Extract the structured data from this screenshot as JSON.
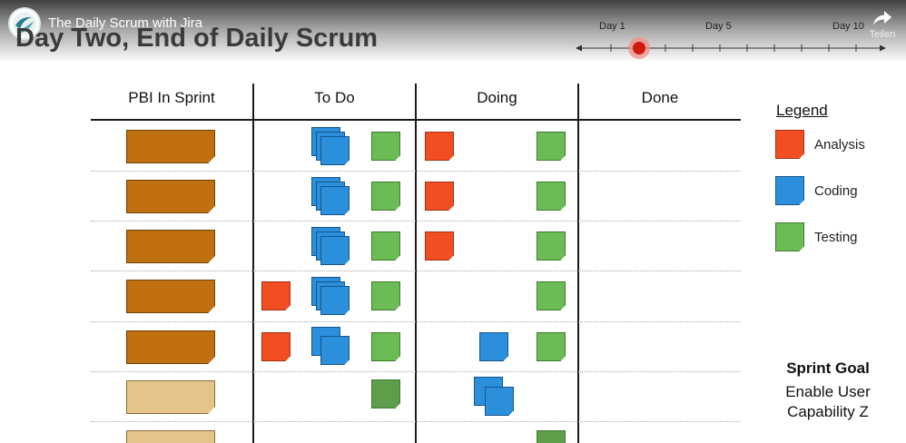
{
  "video": {
    "title": "The Daily Scrum with Jira",
    "share_label": "Teilen",
    "logo_icon": "channel-logo-icon"
  },
  "slide": {
    "title": "Day Two, End of Daily Scrum"
  },
  "timeline": {
    "labels": [
      "Day 1",
      "Day 5",
      "Day 10"
    ],
    "current_marker": "red-dot-day-2"
  },
  "board": {
    "columns": [
      "PBI In Sprint",
      "To Do",
      "Doing",
      "Done"
    ]
  },
  "legend": {
    "title": "Legend",
    "items": [
      {
        "label": "Analysis",
        "color": "#f24e23"
      },
      {
        "label": "Coding",
        "color": "#2b8fdc"
      },
      {
        "label": "Testing",
        "color": "#6cbc55"
      }
    ]
  },
  "sprint_goal": {
    "title": "Sprint Goal",
    "line1": "Enable User",
    "line2": "Capability Z"
  }
}
